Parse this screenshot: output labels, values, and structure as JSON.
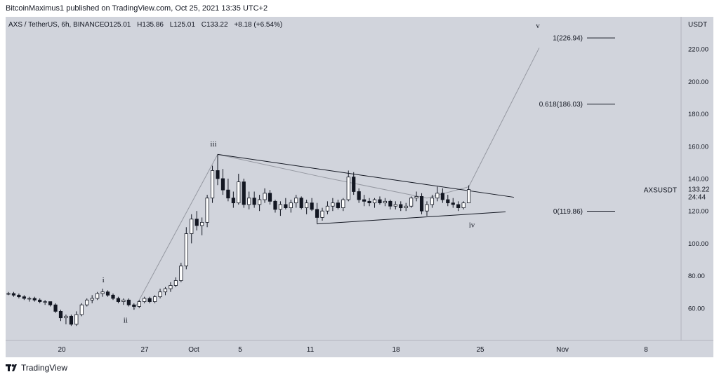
{
  "header": {
    "published": "BitcoinMaximus1 published on TradingView.com, Oct 25, 2021 13:35 UTC+2"
  },
  "legend": {
    "symbol": "AXS / TetherUS, 6h, BINANCE",
    "o_label": "O",
    "o": "125.01",
    "h_label": "H",
    "h": "135.86",
    "l_label": "L",
    "l": "125.01",
    "c_label": "C",
    "c": "133.22",
    "change": "+8.18 (+6.54%)"
  },
  "footer": {
    "brand": "TradingView",
    "logo_icon": "tradingview-logo-icon"
  },
  "colors": {
    "background": "#d1d4dc",
    "candle_up": "#ffffff",
    "candle_down": "#131722",
    "line": "#131722",
    "wave_line": "#9598a1"
  },
  "chart_data": {
    "type": "candlestick",
    "symbol": "AXSUSDT",
    "currency": "USDT",
    "ylim": [
      40,
      240
    ],
    "yticks": [
      "60.00",
      "80.00",
      "100.00",
      "120.00",
      "140.00",
      "160.00",
      "180.00",
      "200.00",
      "220.00"
    ],
    "xticks": [
      "20",
      "27",
      "Oct",
      "5",
      "11",
      "18",
      "25",
      "Nov",
      "8"
    ],
    "last_price": "133.22",
    "countdown": "24:44",
    "waves": [
      "i",
      "ii",
      "iii",
      "iv",
      "v"
    ],
    "fib_levels": [
      {
        "label": "1(226.94)",
        "value": 226.94
      },
      {
        "label": "0.618(186.03)",
        "value": 186.03
      },
      {
        "label": "0(119.86)",
        "value": 119.86
      }
    ],
    "candles": [
      [
        69,
        70,
        68,
        69
      ],
      [
        69,
        70,
        67,
        68
      ],
      [
        68,
        69,
        66,
        67
      ],
      [
        67,
        68,
        65,
        66
      ],
      [
        66,
        67,
        64,
        66
      ],
      [
        66,
        67,
        64,
        65
      ],
      [
        65,
        66,
        63,
        64
      ],
      [
        64,
        65,
        62,
        64
      ],
      [
        64,
        64,
        61,
        62
      ],
      [
        62,
        63,
        57,
        58
      ],
      [
        58,
        59,
        52,
        54
      ],
      [
        54,
        56,
        50,
        55
      ],
      [
        55,
        56,
        49,
        50
      ],
      [
        50,
        58,
        49,
        56
      ],
      [
        56,
        63,
        55,
        62
      ],
      [
        62,
        66,
        61,
        65
      ],
      [
        65,
        68,
        63,
        66
      ],
      [
        66,
        70,
        65,
        69
      ],
      [
        69,
        72,
        67,
        70
      ],
      [
        70,
        71,
        67,
        68
      ],
      [
        68,
        69,
        65,
        66
      ],
      [
        66,
        67,
        63,
        64
      ],
      [
        64,
        66,
        62,
        65
      ],
      [
        65,
        66,
        61,
        62
      ],
      [
        62,
        63,
        59,
        61
      ],
      [
        61,
        65,
        60,
        64
      ],
      [
        64,
        67,
        63,
        66
      ],
      [
        66,
        67,
        63,
        64
      ],
      [
        64,
        68,
        63,
        67
      ],
      [
        67,
        72,
        66,
        70
      ],
      [
        70,
        73,
        68,
        72
      ],
      [
        72,
        76,
        70,
        74
      ],
      [
        74,
        79,
        73,
        77
      ],
      [
        77,
        88,
        76,
        86
      ],
      [
        86,
        110,
        84,
        106
      ],
      [
        106,
        118,
        100,
        115
      ],
      [
        115,
        120,
        108,
        111
      ],
      [
        111,
        116,
        105,
        113
      ],
      [
        113,
        130,
        110,
        128
      ],
      [
        128,
        148,
        125,
        145
      ],
      [
        145,
        155,
        136,
        140
      ],
      [
        140,
        146,
        130,
        133
      ],
      [
        133,
        140,
        126,
        128
      ],
      [
        128,
        132,
        122,
        125
      ],
      [
        125,
        143,
        124,
        138
      ],
      [
        138,
        140,
        122,
        124
      ],
      [
        124,
        132,
        121,
        128
      ],
      [
        128,
        132,
        122,
        124
      ],
      [
        124,
        130,
        120,
        127
      ],
      [
        127,
        134,
        125,
        131
      ],
      [
        131,
        133,
        124,
        126
      ],
      [
        126,
        127,
        119,
        121
      ],
      [
        121,
        126,
        117,
        124
      ],
      [
        124,
        128,
        121,
        122
      ],
      [
        122,
        127,
        119,
        125
      ],
      [
        125,
        130,
        122,
        128
      ],
      [
        128,
        129,
        121,
        122
      ],
      [
        122,
        127,
        118,
        125
      ],
      [
        125,
        128,
        120,
        121
      ],
      [
        121,
        125,
        113,
        116
      ],
      [
        116,
        122,
        114,
        120
      ],
      [
        120,
        126,
        118,
        123
      ],
      [
        123,
        128,
        120,
        125
      ],
      [
        125,
        127,
        121,
        122
      ],
      [
        122,
        128,
        120,
        127
      ],
      [
        127,
        145,
        126,
        141
      ],
      [
        141,
        144,
        130,
        132
      ],
      [
        132,
        134,
        125,
        127
      ],
      [
        127,
        130,
        123,
        126
      ],
      [
        126,
        128,
        123,
        125
      ],
      [
        125,
        128,
        122,
        127
      ],
      [
        127,
        129,
        124,
        125
      ],
      [
        125,
        128,
        123,
        126
      ],
      [
        126,
        127,
        121,
        123
      ],
      [
        123,
        126,
        121,
        124
      ],
      [
        124,
        126,
        120,
        122
      ],
      [
        122,
        125,
        120,
        123
      ],
      [
        123,
        129,
        122,
        128
      ],
      [
        128,
        132,
        126,
        129
      ],
      [
        129,
        131,
        118,
        120
      ],
      [
        120,
        126,
        117,
        124
      ],
      [
        124,
        130,
        122,
        128
      ],
      [
        128,
        135,
        126,
        131
      ],
      [
        131,
        134,
        125,
        127
      ],
      [
        127,
        130,
        123,
        125
      ],
      [
        125,
        128,
        122,
        124
      ],
      [
        124,
        126,
        120,
        122
      ],
      [
        122,
        126,
        121,
        125
      ],
      [
        125.01,
        135.86,
        125.01,
        133.22
      ]
    ]
  }
}
